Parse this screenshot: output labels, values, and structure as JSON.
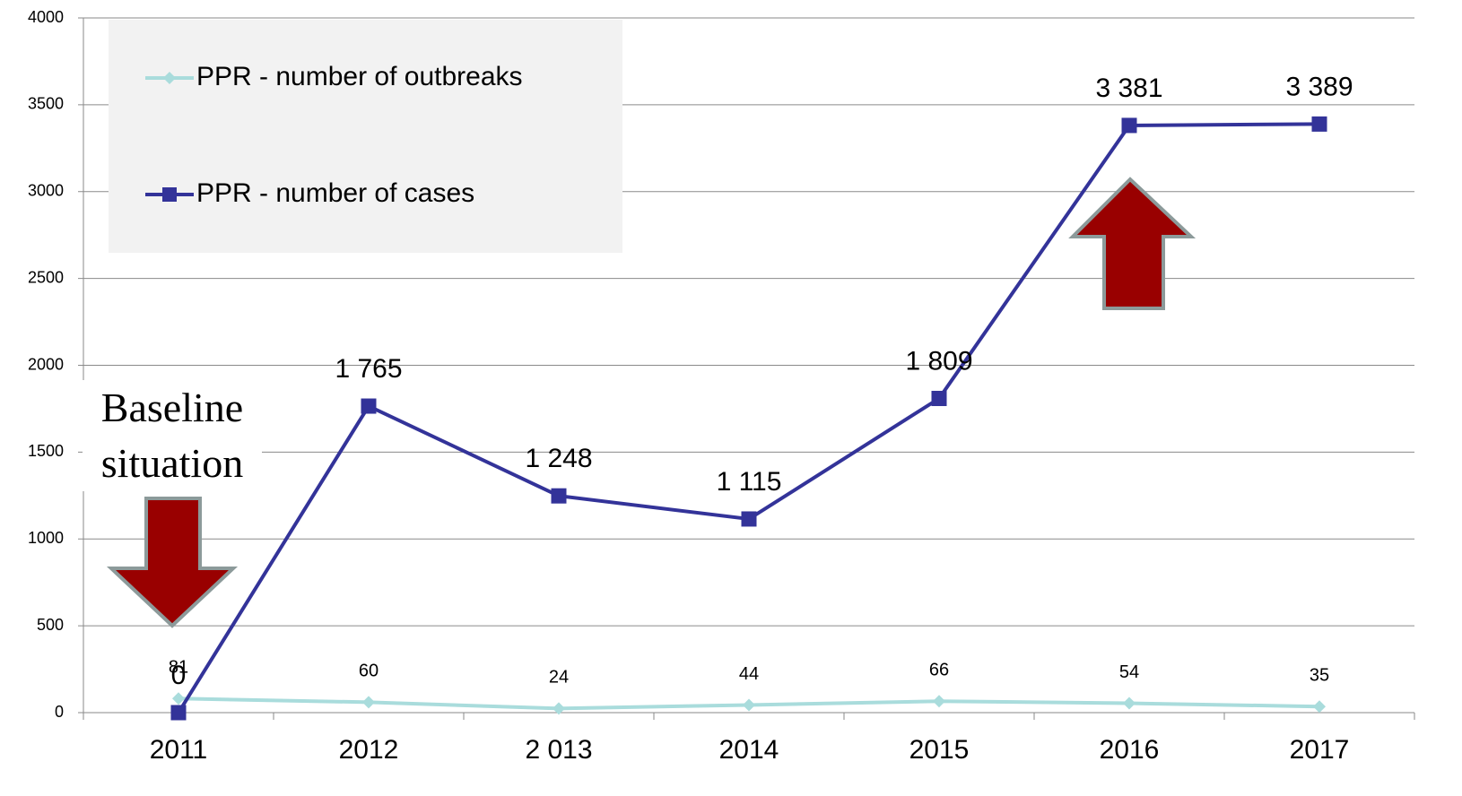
{
  "chart_data": {
    "type": "line",
    "categories": [
      "2011",
      "2012",
      "2 013",
      "2014",
      "2015",
      "2016",
      "2017"
    ],
    "series": [
      {
        "name": "PPR - number of outbreaks",
        "color": "#a9dcdc",
        "marker": "diamond",
        "values": [
          81,
          60,
          24,
          44,
          66,
          54,
          35
        ]
      },
      {
        "name": "PPR - number of cases",
        "color": "#333399",
        "marker": "square",
        "values": [
          0,
          1765,
          1248,
          1115,
          1809,
          3381,
          3389
        ],
        "value_labels": [
          "0",
          "1 765",
          "1 248",
          "1 115",
          "1 809",
          "3 381",
          "3 389"
        ]
      }
    ],
    "ylim": [
      0,
      4000
    ],
    "yticks": [
      0,
      500,
      1000,
      1500,
      2000,
      2500,
      3000,
      3500,
      4000
    ],
    "grid": true,
    "legend": "upper left",
    "annotations": [
      "Baseline situation"
    ]
  }
}
